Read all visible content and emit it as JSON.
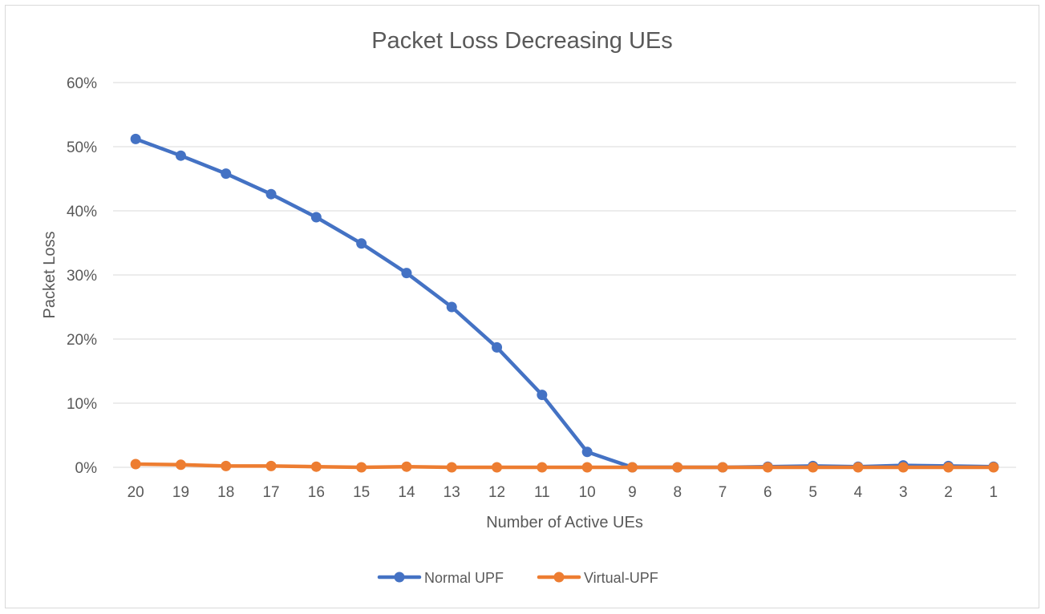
{
  "chart_data": {
    "type": "line",
    "title": "Packet Loss Decreasing UEs",
    "xlabel": "Number of Active UEs",
    "ylabel": "Packet Loss",
    "categories": [
      "20",
      "19",
      "18",
      "17",
      "16",
      "15",
      "14",
      "13",
      "12",
      "11",
      "10",
      "9",
      "8",
      "7",
      "6",
      "5",
      "4",
      "3",
      "2",
      "1"
    ],
    "ylim": [
      0,
      60
    ],
    "yticks": [
      "0%",
      "10%",
      "20%",
      "30%",
      "40%",
      "50%",
      "60%"
    ],
    "grid": true,
    "legend_position": "bottom",
    "series": [
      {
        "name": "Normal UPF",
        "color": "#4472c4",
        "values": [
          51.2,
          48.6,
          45.8,
          42.6,
          39.0,
          34.9,
          30.3,
          25.0,
          18.7,
          11.3,
          2.4,
          0.0,
          0.0,
          0.0,
          0.1,
          0.2,
          0.1,
          0.3,
          0.2,
          0.1
        ]
      },
      {
        "name": "Virtual-UPF",
        "color": "#ed7d31",
        "values": [
          0.5,
          0.4,
          0.2,
          0.2,
          0.1,
          0.0,
          0.1,
          0.0,
          0.0,
          0.0,
          0.0,
          0.0,
          0.0,
          0.0,
          0.0,
          0.0,
          0.0,
          0.0,
          0.0,
          0.0
        ]
      }
    ]
  }
}
